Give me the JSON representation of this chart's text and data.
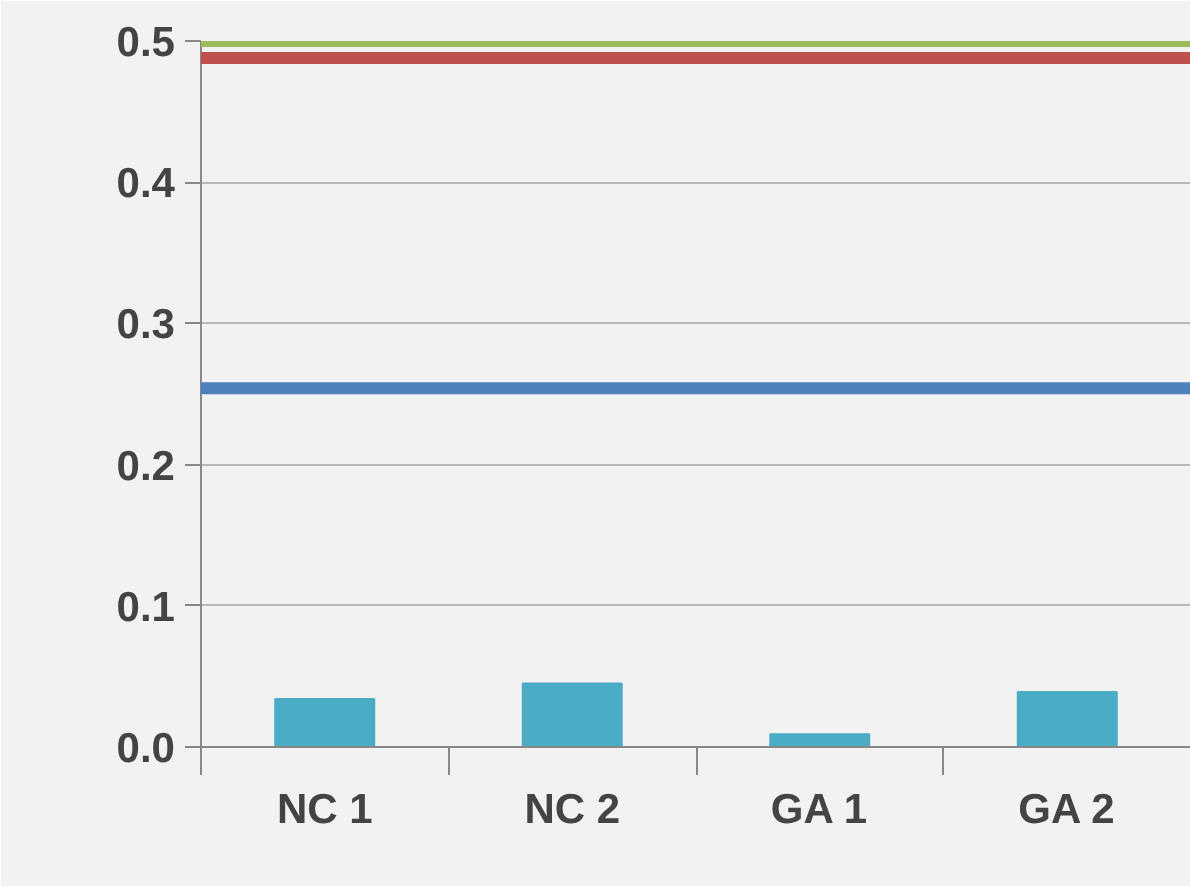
{
  "chart_data": {
    "type": "bar",
    "categories": [
      "NC 1",
      "NC 2",
      "GA 1",
      "GA 2"
    ],
    "values": [
      0.034,
      0.045,
      0.009,
      0.039
    ],
    "color": "#4bacc6",
    "ylim": [
      0,
      0.5
    ],
    "yticks": [
      {
        "value": 0,
        "label": "0.0"
      },
      {
        "value": 0.1,
        "label": "0.1"
      },
      {
        "value": 0.2,
        "label": "0.2"
      },
      {
        "value": 0.3,
        "label": "0.3"
      },
      {
        "value": 0.4,
        "label": "0.4"
      },
      {
        "value": 0.5,
        "label": "0.5"
      }
    ],
    "grid": "y",
    "ref_lines": [
      {
        "axis": "y",
        "value": 0.5,
        "label": null,
        "color": "#9bbb59"
      },
      {
        "axis": "y",
        "value": 0.488,
        "label": null,
        "color": "#c0504d"
      },
      {
        "axis": "y",
        "value": 0.254,
        "label": null,
        "color": "#4f81bd"
      }
    ]
  }
}
